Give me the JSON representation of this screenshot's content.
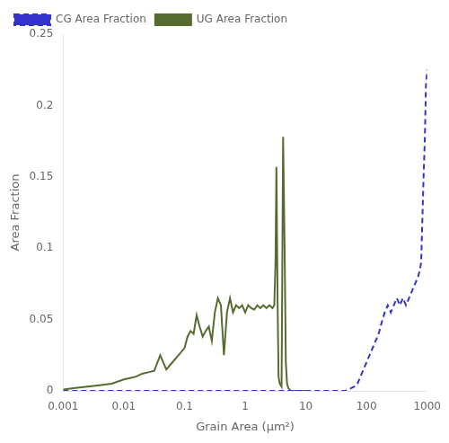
{
  "chart_data": {
    "type": "line",
    "log": "x",
    "xlabel": "Grain Area (μm²)",
    "ylabel": "Area Fraction",
    "xlim": [
      0.001,
      1000
    ],
    "xticks": [
      0.001,
      0.01,
      0.1,
      1,
      10,
      100,
      1000
    ],
    "ylim": [
      0,
      0.25
    ],
    "yticks": [
      0,
      0.05,
      0.1,
      0.15,
      0.2,
      0.25
    ],
    "grid": false,
    "legend": "upper left",
    "series": [
      {
        "name": "CG Area Fraction",
        "color": "#3333cc",
        "line_style": "dashed",
        "x": [
          0.001,
          0.01,
          0.1,
          1,
          3.16228,
          5.01187,
          7.94328,
          10,
          12.5893,
          15.8489,
          19.9526,
          25.1189,
          31.6228,
          35.4813,
          39.8107,
          44.6684,
          50.1187,
          56.2341,
          63.0957,
          70.7946,
          79.4328,
          89.1251,
          100,
          112.202,
          125.893,
          141.254,
          158.489,
          177.828,
          199.526,
          223.872,
          251.189,
          281.838,
          316.228,
          354.813,
          398.107,
          446.684,
          501.187,
          562.341,
          630.957,
          707.946,
          758.578,
          794.328,
          831.764,
          870.964,
          912.011,
          954.993,
          1000
        ],
        "values": [
          0.0,
          0.0,
          0.0,
          0.0,
          0.0,
          0.0,
          0.0,
          0.0,
          0.0,
          0.0,
          0.0,
          0.0,
          0.0,
          0.0,
          0.0,
          0.0,
          0.001,
          0.002,
          0.003,
          0.005,
          0.01,
          0.015,
          0.02,
          0.025,
          0.03,
          0.035,
          0.04,
          0.048,
          0.055,
          0.06,
          0.055,
          0.06,
          0.065,
          0.06,
          0.065,
          0.06,
          0.065,
          0.07,
          0.075,
          0.08,
          0.085,
          0.09,
          0.12,
          0.15,
          0.175,
          0.215,
          0.225
        ]
      },
      {
        "name": "UG Area Fraction",
        "color": "#556B2F",
        "line_style": "solid",
        "x": [
          0.001,
          0.00158489,
          0.00251189,
          0.00398107,
          0.00630957,
          0.01,
          0.0125893,
          0.0158489,
          0.0199526,
          0.0251189,
          0.0316228,
          0.0398107,
          0.0501187,
          0.0630957,
          0.0794328,
          0.1,
          0.112202,
          0.125893,
          0.141254,
          0.158489,
          0.177828,
          0.199526,
          0.223872,
          0.251189,
          0.281838,
          0.316228,
          0.354813,
          0.398107,
          0.446684,
          0.501187,
          0.562341,
          0.630957,
          0.707946,
          0.794328,
          0.891251,
          1,
          1.12202,
          1.25893,
          1.41254,
          1.58489,
          1.77828,
          1.99526,
          2.23872,
          2.51189,
          2.81838,
          3.01995,
          3.16228,
          3.27341,
          3.42768,
          3.54813,
          3.71535,
          3.98107,
          4.21697,
          4.46684,
          4.67735,
          4.89779,
          5.12861,
          5.37032,
          5.62341,
          5.88844,
          6.30957,
          7.94328,
          10
        ],
        "values": [
          0.001,
          0.002,
          0.003,
          0.004,
          0.005,
          0.008,
          0.009,
          0.01,
          0.012,
          0.013,
          0.014,
          0.025,
          0.015,
          0.02,
          0.025,
          0.03,
          0.038,
          0.042,
          0.04,
          0.053,
          0.045,
          0.038,
          0.042,
          0.045,
          0.035,
          0.055,
          0.065,
          0.06,
          0.025,
          0.055,
          0.065,
          0.055,
          0.06,
          0.058,
          0.06,
          0.055,
          0.06,
          0.058,
          0.057,
          0.06,
          0.058,
          0.06,
          0.058,
          0.06,
          0.058,
          0.06,
          0.09,
          0.157,
          0.06,
          0.01,
          0.005,
          0.003,
          0.178,
          0.1,
          0.02,
          0.005,
          0.002,
          0.001,
          0.0,
          0.0,
          0.0,
          0.0,
          0.0
        ]
      }
    ]
  }
}
